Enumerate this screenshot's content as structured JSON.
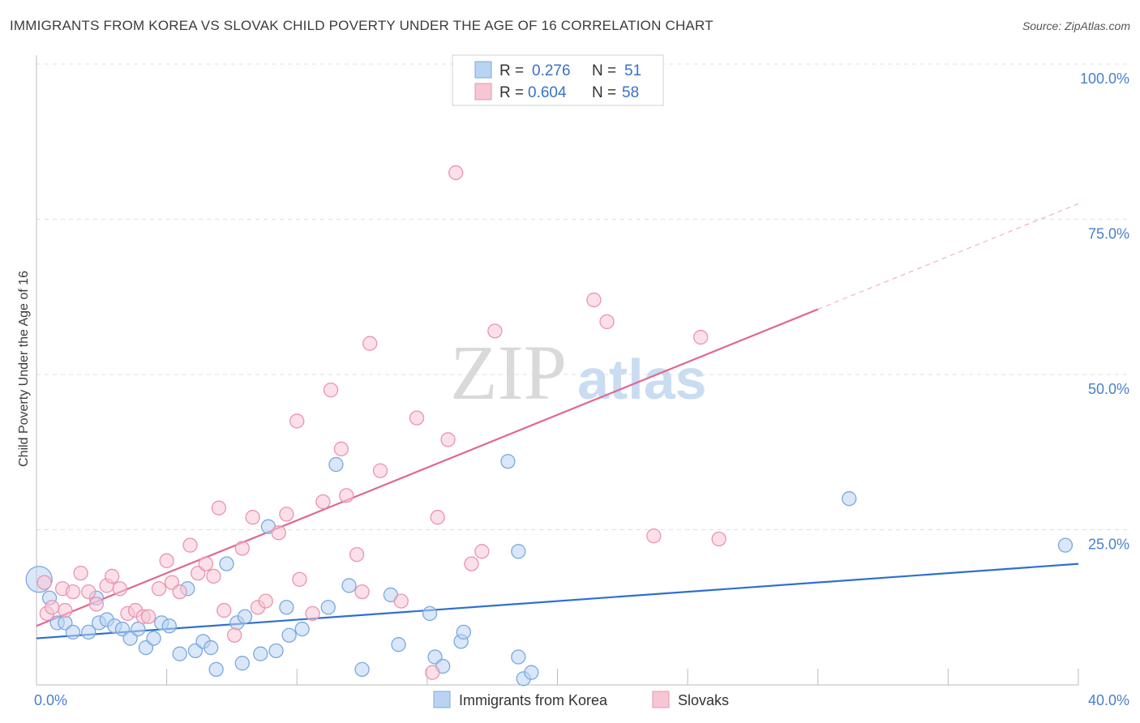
{
  "title": "IMMIGRANTS FROM KOREA VS SLOVAK CHILD POVERTY UNDER THE AGE OF 16 CORRELATION CHART",
  "source": "Source: ZipAtlas.com",
  "watermark": {
    "zip": "ZIP",
    "atlas": "atlas"
  },
  "colors": {
    "blue_fill": "#b9d3f3",
    "blue_stroke": "#7aa8e0",
    "blue_line": "#2f6fce",
    "pink_fill": "#f7c6d5",
    "pink_stroke": "#eb93b0",
    "pink_line": "#e06791",
    "grid": "#e0e0e0",
    "tick_text": "#4a7fcb"
  },
  "legend": {
    "rows": [
      {
        "r_label": "R =",
        "r_value": "0.276",
        "n_label": "N =",
        "n_value": "51",
        "series": "korea"
      },
      {
        "r_label": "R =",
        "r_value": "0.604",
        "n_label": "N =",
        "n_value": "58",
        "series": "slovaks"
      }
    ]
  },
  "bottom_legend": {
    "korea": "Immigrants from Korea",
    "slovaks": "Slovaks"
  },
  "chart_data": {
    "type": "scatter",
    "title": "IMMIGRANTS FROM KOREA VS SLOVAK CHILD POVERTY UNDER THE AGE OF 16 CORRELATION CHART",
    "xlabel": "",
    "ylabel": "Child Poverty Under the Age of 16",
    "xlim": [
      0,
      40
    ],
    "ylim": [
      0,
      100
    ],
    "x_tick_labels": [
      "0.0%",
      "40.0%"
    ],
    "y_tick_labels": [
      "25.0%",
      "50.0%",
      "75.0%",
      "100.0%"
    ],
    "y_ticks": [
      25,
      50,
      75,
      100
    ],
    "legend_position": "top-center",
    "series": [
      {
        "name": "Immigrants from Korea",
        "key": "korea",
        "R": 0.276,
        "N": 51,
        "trend": {
          "x0": 0,
          "y0": 7.5,
          "x1": 40,
          "y1": 19.5,
          "dashed_to": 40
        },
        "points": [
          [
            0.1,
            17,
            3
          ],
          [
            0.5,
            14,
            1
          ],
          [
            0.8,
            10,
            1
          ],
          [
            1.1,
            10,
            1
          ],
          [
            1.4,
            8.5,
            1
          ],
          [
            2.0,
            8.5,
            1
          ],
          [
            2.3,
            14,
            1
          ],
          [
            2.4,
            10,
            1
          ],
          [
            2.7,
            10.5,
            1
          ],
          [
            3.0,
            9.5,
            1
          ],
          [
            3.3,
            9,
            1
          ],
          [
            3.6,
            7.5,
            1
          ],
          [
            3.9,
            9,
            1
          ],
          [
            4.2,
            6,
            1
          ],
          [
            4.5,
            7.5,
            1
          ],
          [
            4.8,
            10,
            1
          ],
          [
            5.1,
            9.5,
            1
          ],
          [
            5.5,
            5,
            1
          ],
          [
            5.8,
            15.5,
            1
          ],
          [
            6.1,
            5.5,
            1
          ],
          [
            6.4,
            7,
            1
          ],
          [
            6.7,
            6,
            1
          ],
          [
            6.9,
            2.5,
            1
          ],
          [
            7.3,
            19.5,
            1
          ],
          [
            7.7,
            10,
            1
          ],
          [
            8.0,
            11,
            1
          ],
          [
            7.9,
            3.5,
            1
          ],
          [
            8.6,
            5,
            1
          ],
          [
            8.9,
            25.5,
            1
          ],
          [
            9.2,
            5.5,
            1
          ],
          [
            9.6,
            12.5,
            1
          ],
          [
            9.7,
            8,
            1
          ],
          [
            10.2,
            9,
            1
          ],
          [
            11.2,
            12.5,
            1
          ],
          [
            11.5,
            35.5,
            1
          ],
          [
            12.0,
            16,
            1
          ],
          [
            12.5,
            2.5,
            1
          ],
          [
            13.6,
            14.5,
            1
          ],
          [
            13.9,
            6.5,
            1
          ],
          [
            15.1,
            11.5,
            1
          ],
          [
            15.3,
            4.5,
            1
          ],
          [
            15.6,
            3,
            1
          ],
          [
            16.3,
            7,
            1
          ],
          [
            16.4,
            8.5,
            1
          ],
          [
            18.1,
            36,
            1
          ],
          [
            18.5,
            4.5,
            1
          ],
          [
            18.7,
            1,
            1
          ],
          [
            19.0,
            2,
            1
          ],
          [
            18.5,
            21.5,
            1
          ],
          [
            31.2,
            30,
            1
          ],
          [
            39.5,
            22.5,
            1
          ]
        ]
      },
      {
        "name": "Slovaks",
        "key": "slovaks",
        "R": 0.604,
        "N": 58,
        "trend": {
          "x0": 0,
          "y0": 9.5,
          "x1": 30,
          "y1": 60.5,
          "dashed_to": 40
        },
        "points": [
          [
            0.3,
            16.5,
            1
          ],
          [
            0.4,
            11.5,
            1
          ],
          [
            0.6,
            12.5,
            1
          ],
          [
            1.0,
            15.5,
            1
          ],
          [
            1.4,
            15,
            1
          ],
          [
            1.7,
            18,
            1
          ],
          [
            2.0,
            15,
            1
          ],
          [
            2.3,
            13,
            1
          ],
          [
            2.7,
            16,
            1
          ],
          [
            2.9,
            17.5,
            1
          ],
          [
            3.2,
            15.5,
            1
          ],
          [
            3.5,
            11.5,
            1
          ],
          [
            3.8,
            12,
            1
          ],
          [
            4.1,
            11,
            1
          ],
          [
            4.3,
            11,
            1
          ],
          [
            4.7,
            15.5,
            1
          ],
          [
            5.0,
            20,
            1
          ],
          [
            5.2,
            16.5,
            1
          ],
          [
            5.5,
            15,
            1
          ],
          [
            5.9,
            22.5,
            1
          ],
          [
            6.2,
            18,
            1
          ],
          [
            6.5,
            19.5,
            1
          ],
          [
            6.8,
            17.5,
            1
          ],
          [
            7.0,
            28.5,
            1
          ],
          [
            7.2,
            12,
            1
          ],
          [
            7.6,
            8,
            1
          ],
          [
            7.9,
            22,
            1
          ],
          [
            8.3,
            27,
            1
          ],
          [
            8.5,
            12.5,
            1
          ],
          [
            8.8,
            13.5,
            1
          ],
          [
            9.3,
            24.5,
            1
          ],
          [
            9.6,
            27.5,
            1
          ],
          [
            10.0,
            42.5,
            1
          ],
          [
            10.1,
            17,
            1
          ],
          [
            10.6,
            11.5,
            1
          ],
          [
            11.0,
            29.5,
            1
          ],
          [
            11.3,
            47.5,
            1
          ],
          [
            11.7,
            38,
            1
          ],
          [
            11.9,
            30.5,
            1
          ],
          [
            12.3,
            21,
            1
          ],
          [
            12.5,
            15,
            1
          ],
          [
            12.8,
            55,
            1
          ],
          [
            13.2,
            34.5,
            1
          ],
          [
            14.0,
            13.5,
            1
          ],
          [
            14.6,
            43,
            1
          ],
          [
            15.2,
            2,
            1
          ],
          [
            15.4,
            27,
            1
          ],
          [
            15.8,
            39.5,
            1
          ],
          [
            16.1,
            82.5,
            1
          ],
          [
            16.7,
            19.5,
            1
          ],
          [
            17.1,
            21.5,
            1
          ],
          [
            17.6,
            57,
            1
          ],
          [
            21.4,
            62,
            1
          ],
          [
            21.9,
            58.5,
            1
          ],
          [
            23.7,
            24,
            1
          ],
          [
            25.5,
            56,
            1
          ],
          [
            26.2,
            23.5,
            1
          ],
          [
            1.1,
            12,
            1
          ]
        ]
      }
    ]
  }
}
